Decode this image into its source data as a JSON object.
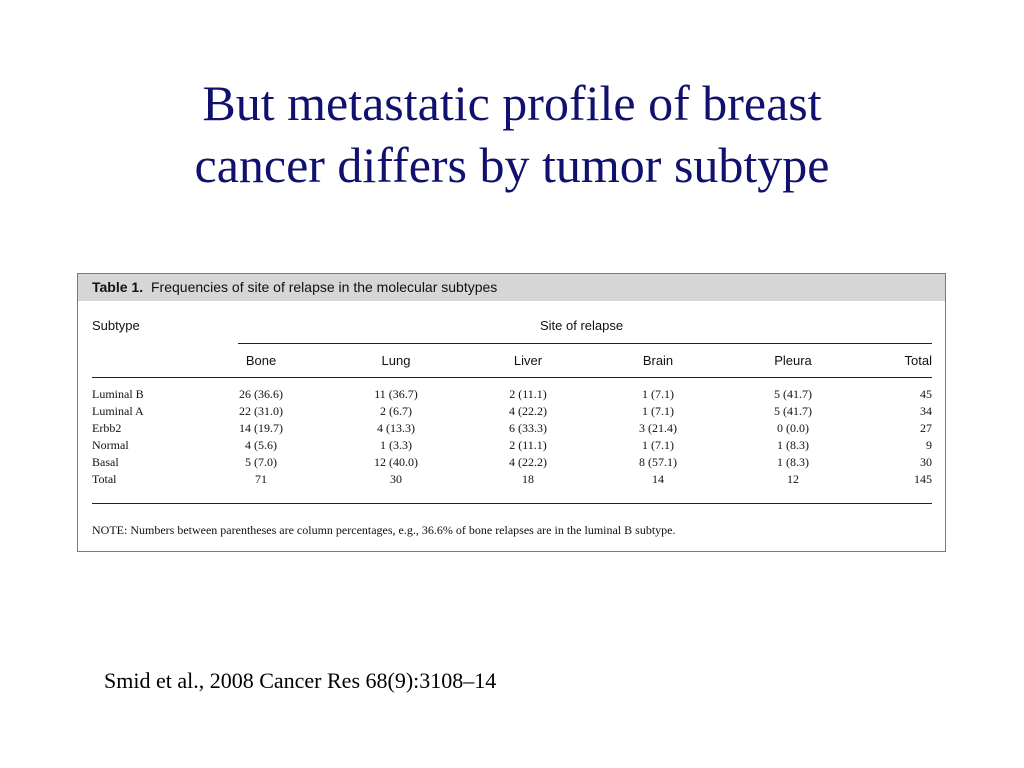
{
  "title": {
    "line1": "But metastatic profile of breast",
    "line2": "cancer differs by tumor subtype"
  },
  "table": {
    "caption_label": "Table 1.",
    "caption_text": "Frequencies of site of relapse in the molecular subtypes",
    "subtype_header": "Subtype",
    "group_header": "Site of relapse",
    "columns": [
      "Bone",
      "Lung",
      "Liver",
      "Brain",
      "Pleura",
      "Total"
    ],
    "rows": [
      {
        "subtype": "Luminal B",
        "cells": [
          "26 (36.6)",
          "11 (36.7)",
          "2 (11.1)",
          "1 (7.1)",
          "5 (41.7)",
          "45"
        ]
      },
      {
        "subtype": "Luminal A",
        "cells": [
          "22 (31.0)",
          "2 (6.7)",
          "4 (22.2)",
          "1 (7.1)",
          "5 (41.7)",
          "34"
        ]
      },
      {
        "subtype": "Erbb2",
        "cells": [
          "14 (19.7)",
          "4 (13.3)",
          "6 (33.3)",
          "3 (21.4)",
          "0 (0.0)",
          "27"
        ]
      },
      {
        "subtype": "Normal",
        "cells": [
          "4 (5.6)",
          "1 (3.3)",
          "2 (11.1)",
          "1 (7.1)",
          "1 (8.3)",
          "9"
        ]
      },
      {
        "subtype": "Basal",
        "cells": [
          "5 (7.0)",
          "12 (40.0)",
          "4 (22.2)",
          "8 (57.1)",
          "1 (8.3)",
          "30"
        ]
      },
      {
        "subtype": "Total",
        "cells": [
          "71",
          "30",
          "18",
          "14",
          "12",
          "145"
        ]
      }
    ],
    "note": "NOTE: Numbers between parentheses are column percentages, e.g., 36.6% of bone relapses are in the luminal B subtype."
  },
  "citation": "Smid et al., 2008 Cancer Res 68(9):3108–14"
}
